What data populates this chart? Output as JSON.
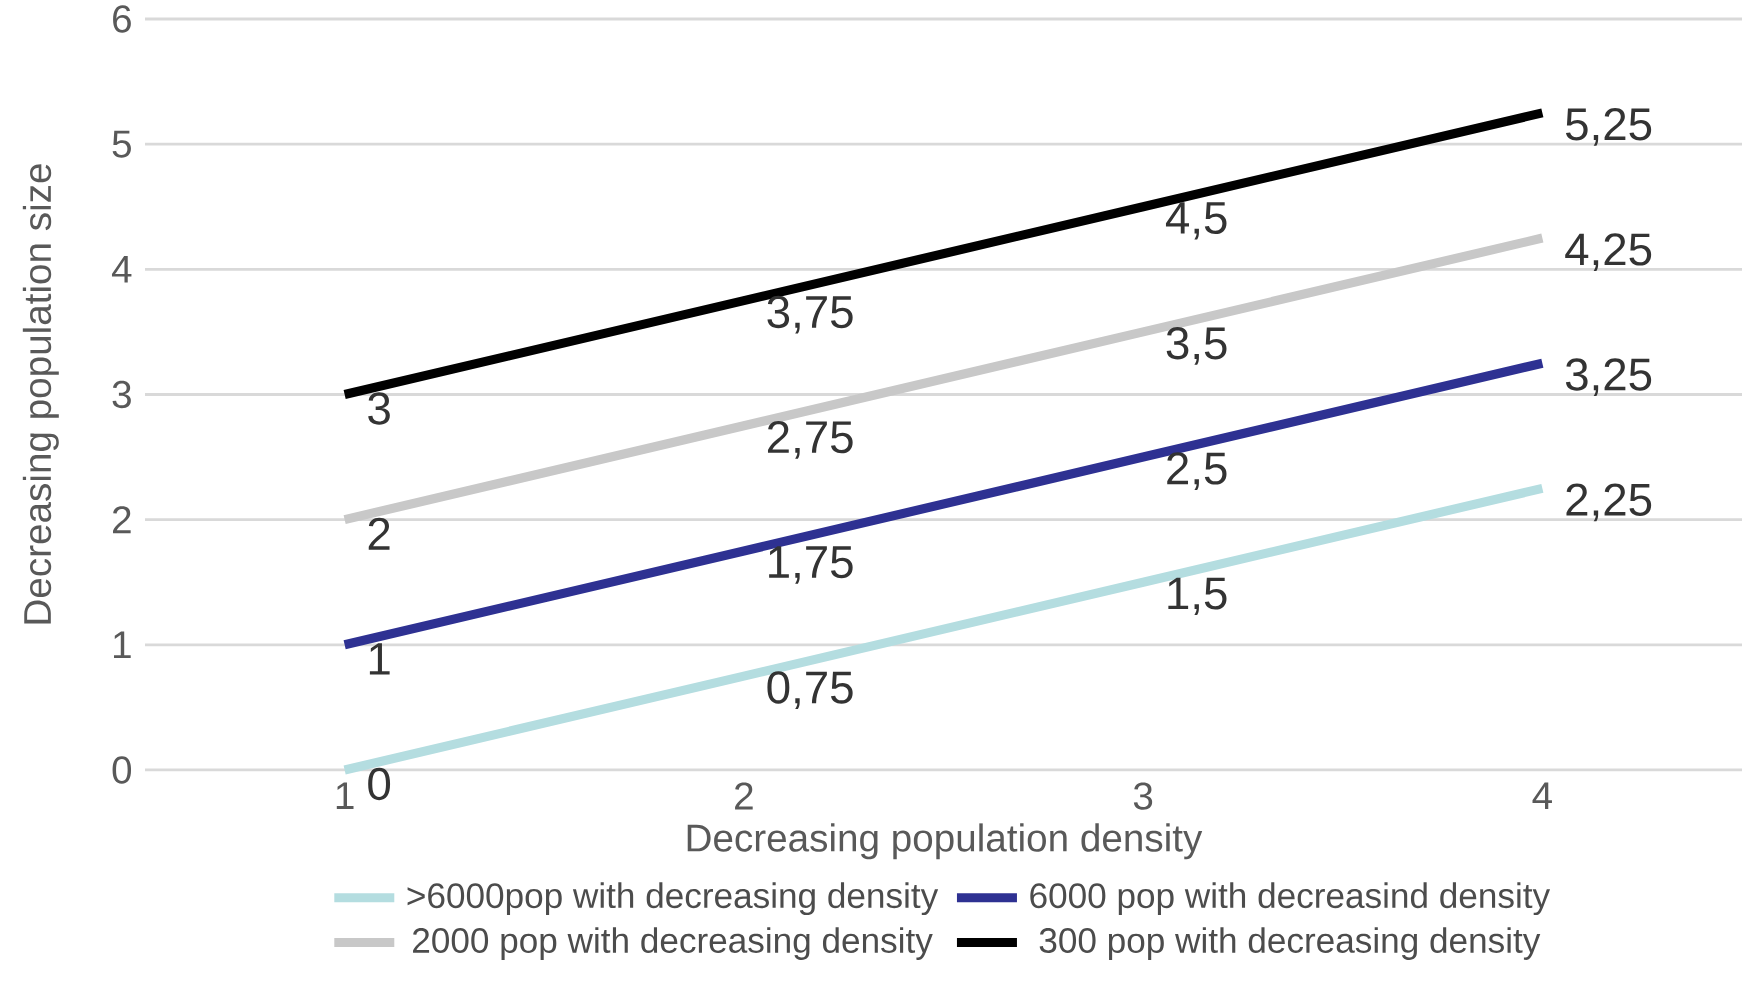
{
  "chart_data": {
    "type": "line",
    "xlabel": "Decreasing   population density",
    "ylabel": "Decreasing population size",
    "categories": [
      "1",
      "2",
      "3",
      "4"
    ],
    "series": [
      {
        "name": ">6000pop with decreasing density",
        "color": "#b4dde0",
        "values": [
          0,
          0.75,
          1.5,
          2.25
        ],
        "value_labels": [
          "0",
          "0,75",
          "1,5",
          "2,25"
        ]
      },
      {
        "name": "6000 pop with decreasind density",
        "color": "#2e3192",
        "values": [
          1,
          1.75,
          2.5,
          3.25
        ],
        "value_labels": [
          "1",
          "1,75",
          "2,5",
          "3,25"
        ]
      },
      {
        "name": "2000 pop with decreasing density",
        "color": "#c8c8c8",
        "values": [
          2,
          2.75,
          3.5,
          4.25
        ],
        "value_labels": [
          "2",
          "2,75",
          "3,5",
          "4,25"
        ]
      },
      {
        "name": "300   pop with decreasing density",
        "color": "#000000",
        "values": [
          3,
          3.75,
          4.5,
          5.25
        ],
        "value_labels": [
          "3",
          "3,75",
          "4,5",
          "5,25"
        ]
      }
    ],
    "ylim": [
      0,
      6
    ],
    "yticks": [
      0,
      1,
      2,
      3,
      4,
      5,
      6
    ],
    "grid": "y",
    "legend": "bottom",
    "marker": "none",
    "line_style": "solid"
  }
}
